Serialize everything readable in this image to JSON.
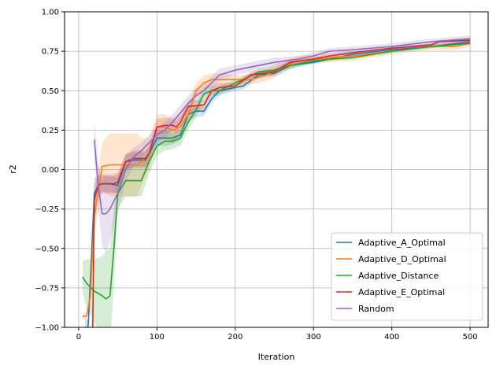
{
  "chart_data": {
    "type": "line",
    "title": "",
    "xlabel": "Iteration",
    "ylabel": "r2",
    "xlim": [
      -18,
      523
    ],
    "ylim": [
      -1.0,
      1.0
    ],
    "xticks": [
      "0",
      "100",
      "200",
      "300",
      "400",
      "500"
    ],
    "xtick_values": [
      0,
      100,
      200,
      300,
      400,
      500
    ],
    "yticks": [
      "−1.00",
      "−0.75",
      "−0.50",
      "−0.25",
      "0.00",
      "0.25",
      "0.50",
      "0.75",
      "1.00"
    ],
    "ytick_values": [
      -1.0,
      -0.75,
      -0.5,
      -0.25,
      0.0,
      0.25,
      0.5,
      0.75,
      1.0
    ],
    "grid": true,
    "legend_position": "bottom-right",
    "series": [
      {
        "name": "Adaptive_A_Optimal",
        "color": "#1f77b4",
        "x": [
          8,
          12,
          16,
          20,
          25,
          30,
          40,
          50,
          60,
          70,
          85,
          90,
          100,
          110,
          120,
          130,
          140,
          150,
          160,
          170,
          180,
          200,
          210,
          230,
          250,
          270,
          300,
          320,
          350,
          400,
          450,
          500
        ],
        "y": [
          -1.0,
          -1.0,
          -0.6,
          -0.15,
          -0.1,
          -0.09,
          -0.09,
          -0.1,
          0.05,
          0.06,
          0.06,
          0.1,
          0.2,
          0.2,
          0.2,
          0.22,
          0.35,
          0.37,
          0.37,
          0.45,
          0.5,
          0.52,
          0.53,
          0.6,
          0.61,
          0.66,
          0.68,
          0.7,
          0.73,
          0.76,
          0.78,
          0.81
        ],
        "band": [
          0.05,
          0.05,
          0.1,
          0.1,
          0.06,
          0.05,
          0.05,
          0.05,
          0.05,
          0.05,
          0.05,
          0.05,
          0.05,
          0.05,
          0.04,
          0.04,
          0.04,
          0.04,
          0.03,
          0.03,
          0.03,
          0.02,
          0.02,
          0.02,
          0.02,
          0.02,
          0.01,
          0.01,
          0.01,
          0.01,
          0.01,
          0.01
        ]
      },
      {
        "name": "Adaptive_D_Optimal",
        "color": "#ff7f0e",
        "x": [
          5,
          10,
          15,
          20,
          30,
          40,
          50,
          60,
          75,
          80,
          90,
          100,
          110,
          120,
          130,
          140,
          150,
          160,
          170,
          180,
          200,
          220,
          240,
          260,
          280,
          300,
          320,
          350,
          400,
          450,
          480,
          500
        ],
        "y": [
          -0.93,
          -0.93,
          -0.8,
          -0.3,
          0.02,
          0.03,
          0.03,
          0.03,
          0.03,
          0.05,
          0.1,
          0.27,
          0.27,
          0.25,
          0.27,
          0.35,
          0.5,
          0.55,
          0.57,
          0.57,
          0.57,
          0.57,
          0.6,
          0.65,
          0.69,
          0.7,
          0.71,
          0.72,
          0.75,
          0.78,
          0.78,
          0.8
        ],
        "band": [
          0.02,
          0.02,
          0.05,
          0.1,
          0.15,
          0.2,
          0.2,
          0.2,
          0.2,
          0.15,
          0.1,
          0.08,
          0.08,
          0.08,
          0.07,
          0.06,
          0.05,
          0.05,
          0.04,
          0.04,
          0.03,
          0.03,
          0.04,
          0.04,
          0.03,
          0.03,
          0.03,
          0.03,
          0.02,
          0.02,
          0.02,
          0.02
        ]
      },
      {
        "name": "Adaptive_Distance",
        "color": "#2ca02c",
        "x": [
          5,
          10,
          20,
          30,
          35,
          40,
          45,
          50,
          60,
          70,
          80,
          90,
          100,
          110,
          120,
          130,
          140,
          150,
          160,
          170,
          180,
          200,
          210,
          230,
          250,
          270,
          300,
          320,
          350,
          400,
          450,
          500
        ],
        "y": [
          -0.68,
          -0.72,
          -0.77,
          -0.8,
          -0.82,
          -0.8,
          -0.5,
          -0.15,
          -0.07,
          -0.07,
          -0.07,
          0.05,
          0.15,
          0.18,
          0.18,
          0.2,
          0.3,
          0.38,
          0.48,
          0.5,
          0.5,
          0.55,
          0.57,
          0.62,
          0.63,
          0.66,
          0.69,
          0.7,
          0.71,
          0.75,
          0.78,
          0.8
        ],
        "band": [
          0.1,
          0.15,
          0.2,
          0.25,
          0.3,
          0.3,
          0.25,
          0.1,
          0.1,
          0.1,
          0.1,
          0.08,
          0.06,
          0.06,
          0.05,
          0.05,
          0.05,
          0.04,
          0.04,
          0.03,
          0.03,
          0.02,
          0.02,
          0.02,
          0.02,
          0.02,
          0.01,
          0.01,
          0.01,
          0.01,
          0.01,
          0.01
        ]
      },
      {
        "name": "Adaptive_E_Optimal",
        "color": "#d62728",
        "x": [
          18,
          20,
          22,
          25,
          30,
          40,
          45,
          50,
          60,
          70,
          85,
          90,
          100,
          110,
          120,
          125,
          130,
          140,
          160,
          170,
          180,
          200,
          220,
          250,
          270,
          300,
          320,
          350,
          400,
          450,
          460,
          500
        ],
        "y": [
          -1.0,
          -0.2,
          -0.15,
          -0.1,
          -0.09,
          -0.09,
          -0.09,
          -0.08,
          0.05,
          0.07,
          0.07,
          0.1,
          0.27,
          0.28,
          0.28,
          0.27,
          0.3,
          0.4,
          0.41,
          0.5,
          0.52,
          0.53,
          0.6,
          0.62,
          0.68,
          0.7,
          0.72,
          0.74,
          0.77,
          0.79,
          0.81,
          0.82
        ],
        "band": [
          0.1,
          0.1,
          0.08,
          0.07,
          0.06,
          0.06,
          0.06,
          0.06,
          0.05,
          0.05,
          0.05,
          0.05,
          0.05,
          0.05,
          0.04,
          0.04,
          0.04,
          0.04,
          0.03,
          0.03,
          0.03,
          0.02,
          0.02,
          0.02,
          0.02,
          0.01,
          0.01,
          0.01,
          0.01,
          0.01,
          0.01,
          0.01
        ]
      },
      {
        "name": "Random",
        "color": "#9467bd",
        "x": [
          20,
          25,
          30,
          35,
          40,
          50,
          60,
          70,
          80,
          90,
          100,
          110,
          120,
          130,
          140,
          150,
          160,
          170,
          180,
          200,
          220,
          250,
          280,
          300,
          320,
          350,
          400,
          450,
          500
        ],
        "y": [
          0.19,
          -0.1,
          -0.28,
          -0.28,
          -0.25,
          -0.15,
          0.0,
          0.08,
          0.12,
          0.17,
          0.22,
          0.25,
          0.3,
          0.36,
          0.42,
          0.47,
          0.5,
          0.55,
          0.6,
          0.63,
          0.65,
          0.68,
          0.7,
          0.72,
          0.75,
          0.76,
          0.78,
          0.81,
          0.83
        ],
        "band": [
          0.12,
          0.15,
          0.2,
          0.25,
          0.2,
          0.12,
          0.08,
          0.06,
          0.05,
          0.05,
          0.05,
          0.05,
          0.05,
          0.05,
          0.05,
          0.05,
          0.04,
          0.04,
          0.04,
          0.03,
          0.03,
          0.03,
          0.02,
          0.02,
          0.02,
          0.02,
          0.02,
          0.02,
          0.02
        ]
      }
    ]
  }
}
